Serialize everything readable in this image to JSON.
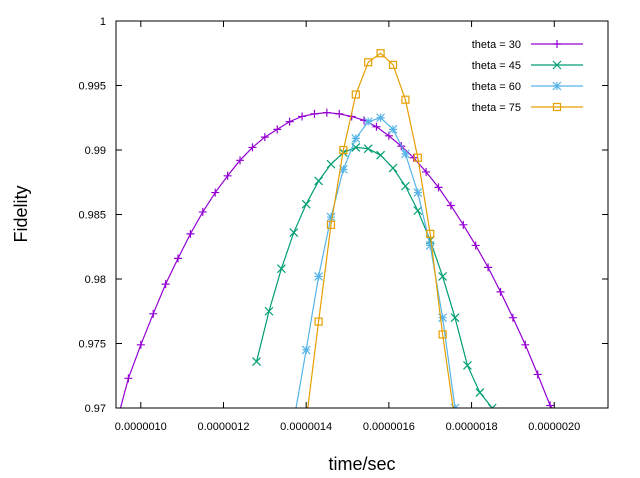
{
  "chart_data": {
    "type": "line",
    "xlabel": "time/sec",
    "ylabel": "Fidelity",
    "xlim": [
      9.4e-07,
      2.13e-06
    ],
    "ylim": [
      0.97,
      1.0
    ],
    "x_ticks": [
      1e-06,
      1.2e-06,
      1.4e-06,
      1.6e-06,
      1.8e-06,
      2e-06
    ],
    "x_tick_labels": [
      "0.0000010",
      "0.0000012",
      "0.0000014",
      "0.0000016",
      "0.0000018",
      "0.0000020"
    ],
    "y_ticks": [
      0.97,
      0.975,
      0.98,
      0.985,
      0.99,
      0.995,
      1.0
    ],
    "y_tick_labels": [
      "0.97",
      "0.975",
      "0.98",
      "0.985",
      "0.99",
      "0.995",
      "1"
    ],
    "legend_position": "top-right",
    "series": [
      {
        "name": "theta = 30",
        "color": "#9400d3",
        "marker": "plus",
        "x": [
          9.4e-07,
          9.7e-07,
          1e-06,
          1.03e-06,
          1.06e-06,
          1.09e-06,
          1.12e-06,
          1.15e-06,
          1.18e-06,
          1.21e-06,
          1.24e-06,
          1.27e-06,
          1.3e-06,
          1.33e-06,
          1.36e-06,
          1.39e-06,
          1.42e-06,
          1.45e-06,
          1.48e-06,
          1.51e-06,
          1.54e-06,
          1.57e-06,
          1.6e-06,
          1.63e-06,
          1.66e-06,
          1.69e-06,
          1.72e-06,
          1.75e-06,
          1.78e-06,
          1.81e-06,
          1.84e-06,
          1.87e-06,
          1.9e-06,
          1.93e-06,
          1.96e-06,
          1.99e-06,
          2.02e-06,
          2.05e-06,
          2.08e-06,
          2.11e-06,
          2.13e-06
        ],
        "y": [
          0.9687,
          0.9723,
          0.9749,
          0.9773,
          0.9796,
          0.9816,
          0.9835,
          0.9852,
          0.9867,
          0.988,
          0.9892,
          0.9902,
          0.991,
          0.9916,
          0.9922,
          0.9926,
          0.9928,
          0.9929,
          0.9928,
          0.9926,
          0.9923,
          0.9918,
          0.9911,
          0.9903,
          0.9894,
          0.9883,
          0.9871,
          0.9857,
          0.9842,
          0.9826,
          0.9809,
          0.979,
          0.977,
          0.9749,
          0.9726,
          0.9702,
          0.969,
          0.969,
          0.969,
          0.969,
          0.969
        ]
      },
      {
        "name": "theta = 45",
        "color": "#009e73",
        "marker": "cross",
        "x": [
          1.28e-06,
          1.31e-06,
          1.34e-06,
          1.37e-06,
          1.4e-06,
          1.43e-06,
          1.46e-06,
          1.49e-06,
          1.52e-06,
          1.55e-06,
          1.58e-06,
          1.61e-06,
          1.64e-06,
          1.67e-06,
          1.7e-06,
          1.73e-06,
          1.76e-06,
          1.79e-06,
          1.82e-06,
          1.85e-06,
          1.88e-06
        ],
        "y": [
          0.9736,
          0.9775,
          0.9808,
          0.9836,
          0.9858,
          0.9876,
          0.9889,
          0.9898,
          0.9902,
          0.9901,
          0.9896,
          0.9886,
          0.9872,
          0.9853,
          0.983,
          0.9802,
          0.977,
          0.9733,
          0.9712,
          0.97,
          0.969
        ]
      },
      {
        "name": "theta = 60",
        "color": "#56b4e9",
        "marker": "star",
        "x": [
          1.37e-06,
          1.4e-06,
          1.43e-06,
          1.46e-06,
          1.49e-06,
          1.52e-06,
          1.55e-06,
          1.58e-06,
          1.61e-06,
          1.64e-06,
          1.67e-06,
          1.7e-06,
          1.73e-06,
          1.76e-06,
          1.79e-06
        ],
        "y": [
          0.969,
          0.9745,
          0.9802,
          0.9848,
          0.9885,
          0.9909,
          0.9922,
          0.9925,
          0.9916,
          0.9897,
          0.9867,
          0.9826,
          0.977,
          0.97,
          0.969
        ]
      },
      {
        "name": "theta = 75",
        "color": "#e69f00",
        "marker": "square",
        "x": [
          1.4e-06,
          1.43e-06,
          1.46e-06,
          1.49e-06,
          1.52e-06,
          1.55e-06,
          1.58e-06,
          1.61e-06,
          1.64e-06,
          1.67e-06,
          1.7e-06,
          1.73e-06,
          1.76e-06,
          1.79e-06
        ],
        "y": [
          0.969,
          0.9767,
          0.9842,
          0.99,
          0.9943,
          0.9968,
          0.9975,
          0.9966,
          0.9939,
          0.9894,
          0.9835,
          0.9757,
          0.969,
          0.969
        ]
      }
    ]
  }
}
